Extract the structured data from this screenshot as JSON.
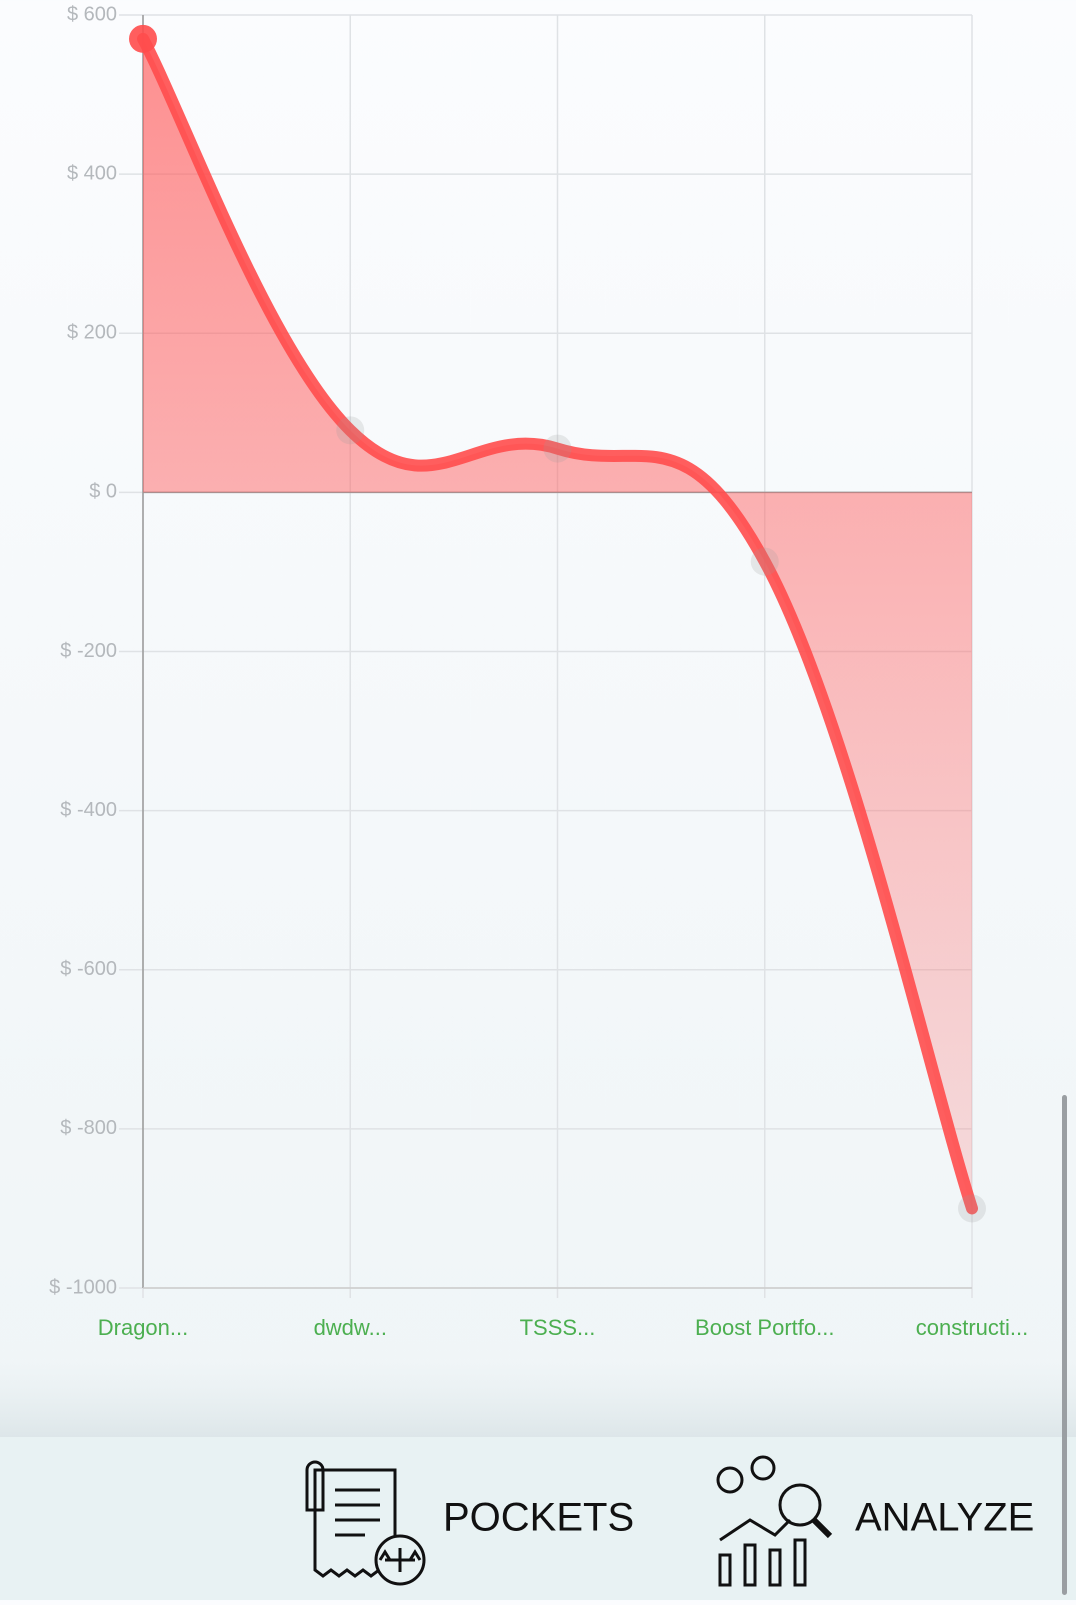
{
  "chart_data": {
    "type": "line",
    "categories": [
      "Dragon...",
      "dwdw...",
      "TSSS...",
      "Boost Portfo...",
      "constructi..."
    ],
    "values": [
      570,
      78,
      55,
      -87,
      -900
    ],
    "color": "#ff4d4d",
    "ylim": [
      -1000,
      600
    ],
    "yticks": [
      {
        "value": 600,
        "label": "$ 600"
      },
      {
        "value": 400,
        "label": "$ 400"
      },
      {
        "value": 200,
        "label": "$ 200"
      },
      {
        "value": 0,
        "label": "$ 0"
      },
      {
        "value": -200,
        "label": "$ -200"
      },
      {
        "value": -400,
        "label": "$ -400"
      },
      {
        "value": -600,
        "label": "$ -600"
      },
      {
        "value": -800,
        "label": "$ -800"
      },
      {
        "value": -1000,
        "label": "$ -1000"
      }
    ],
    "grid": true
  },
  "nav": {
    "items": [
      {
        "label": "POCKETS"
      },
      {
        "label": "ANALYZE"
      }
    ]
  }
}
